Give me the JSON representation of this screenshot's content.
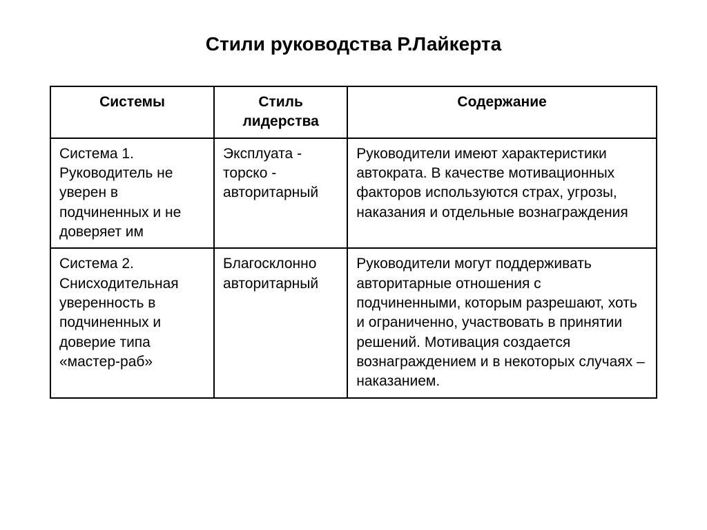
{
  "slide": {
    "title": "Стили руководства Р.Лайкерта",
    "title_fontsize": 28,
    "title_weight": "bold",
    "background_color": "#ffffff",
    "text_color": "#000000",
    "border_color": "#000000",
    "border_width": 2,
    "cell_fontsize": 21
  },
  "table": {
    "columns": [
      {
        "label": "Системы",
        "width_pct": 27
      },
      {
        "label": "Стиль лидерства",
        "width_pct": 22
      },
      {
        "label": "Содержание",
        "width_pct": 51
      }
    ],
    "rows": [
      {
        "system": "Система 1. Руководитель не уверен в подчиненных и не доверяет им",
        "style_line1": "Эксплуата -",
        "style_line2": "торско - авторитарный",
        "content": "Руководители имеют характеристики автократа. В качестве мотивационных факторов используются страх, угрозы, наказания и отдельные вознаграждения"
      },
      {
        "system": "Система 2. Снисходительная уверенность в подчиненных и доверие типа «мастер-раб»",
        "style_line1": "Благосклонно авторитарный",
        "style_line2": "",
        "content": "Руководители могут поддерживать авторитарные отношения с подчиненными, которым разрешают, хоть и ограниченно, участвовать в принятии решений. Мотивация создается вознаграждением и в некоторых случаях – наказанием."
      }
    ]
  }
}
